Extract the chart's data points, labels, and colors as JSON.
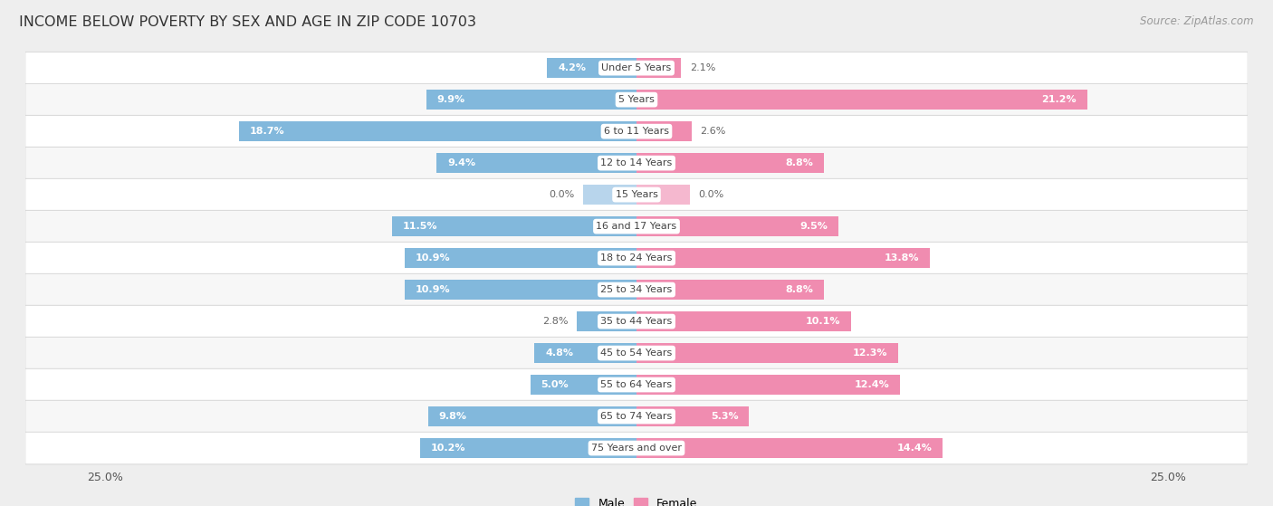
{
  "title": "INCOME BELOW POVERTY BY SEX AND AGE IN ZIP CODE 10703",
  "source": "Source: ZipAtlas.com",
  "categories": [
    "Under 5 Years",
    "5 Years",
    "6 to 11 Years",
    "12 to 14 Years",
    "15 Years",
    "16 and 17 Years",
    "18 to 24 Years",
    "25 to 34 Years",
    "35 to 44 Years",
    "45 to 54 Years",
    "55 to 64 Years",
    "65 to 74 Years",
    "75 Years and over"
  ],
  "male_values": [
    4.2,
    9.9,
    18.7,
    9.4,
    0.0,
    11.5,
    10.9,
    10.9,
    2.8,
    4.8,
    5.0,
    9.8,
    10.2
  ],
  "female_values": [
    2.1,
    21.2,
    2.6,
    8.8,
    0.0,
    9.5,
    13.8,
    8.8,
    10.1,
    12.3,
    12.4,
    5.3,
    14.4
  ],
  "male_color": "#82B8DC",
  "female_color": "#F08CB0",
  "male_color_light": "#B8D5EC",
  "female_color_light": "#F5B8CF",
  "male_label": "Male",
  "female_label": "Female",
  "xlim": 25.0,
  "bar_height": 0.62,
  "background_color": "#eeeeee",
  "row_color_odd": "#f7f7f7",
  "row_color_even": "#ffffff",
  "title_fontsize": 11.5,
  "source_fontsize": 8.5,
  "label_fontsize": 8,
  "category_fontsize": 8,
  "zero_stub": 2.5
}
